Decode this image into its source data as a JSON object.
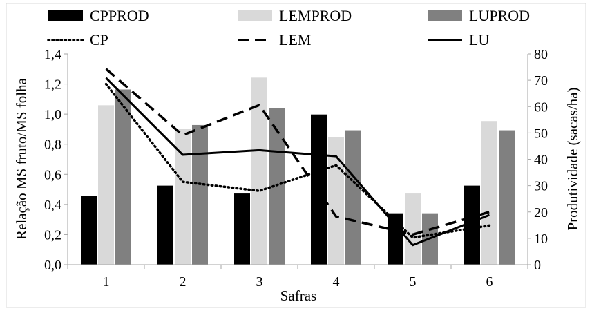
{
  "chart_data": {
    "type": "bar+line",
    "title": "",
    "xlabel": "Safras",
    "ylabel_left": "Relação MS fruto/MS folha",
    "ylabel_right": "Produtividade (sacas/ha)",
    "categories": [
      "1",
      "2",
      "3",
      "4",
      "5",
      "6"
    ],
    "ylim_left": [
      0,
      1.4
    ],
    "yticks_left": [
      "0,0",
      "0,2",
      "0,4",
      "0,6",
      "0,8",
      "1,0",
      "1,2",
      "1,4"
    ],
    "ylim_right": [
      0,
      80
    ],
    "yticks_right": [
      "0",
      "10",
      "20",
      "30",
      "40",
      "50",
      "60",
      "70",
      "80"
    ],
    "bar_series": [
      {
        "name": "CPPROD",
        "color": "#000000",
        "axis": "right",
        "values": [
          26,
          30,
          27,
          57,
          19.5,
          30
        ]
      },
      {
        "name": "LEMPROD",
        "color": "#d9d9d9",
        "axis": "right",
        "values": [
          60.5,
          51.5,
          71,
          48.5,
          27,
          54.5
        ]
      },
      {
        "name": "LUPROD",
        "color": "#808080",
        "axis": "right",
        "values": [
          66.5,
          53,
          59.5,
          51,
          19.5,
          51
        ]
      }
    ],
    "line_series": [
      {
        "name": "CP",
        "style": "dotted",
        "color": "#000000",
        "axis": "left",
        "values": [
          1.2,
          0.55,
          0.49,
          0.66,
          0.18,
          0.26
        ]
      },
      {
        "name": "LEM",
        "style": "dashed",
        "color": "#000000",
        "axis": "left",
        "values": [
          1.3,
          0.86,
          1.06,
          0.32,
          0.2,
          0.35
        ]
      },
      {
        "name": "LU",
        "style": "solid",
        "color": "#000000",
        "axis": "left",
        "values": [
          1.24,
          0.73,
          0.76,
          0.72,
          0.13,
          0.33
        ]
      }
    ],
    "grid": false,
    "legend_position": "top"
  }
}
